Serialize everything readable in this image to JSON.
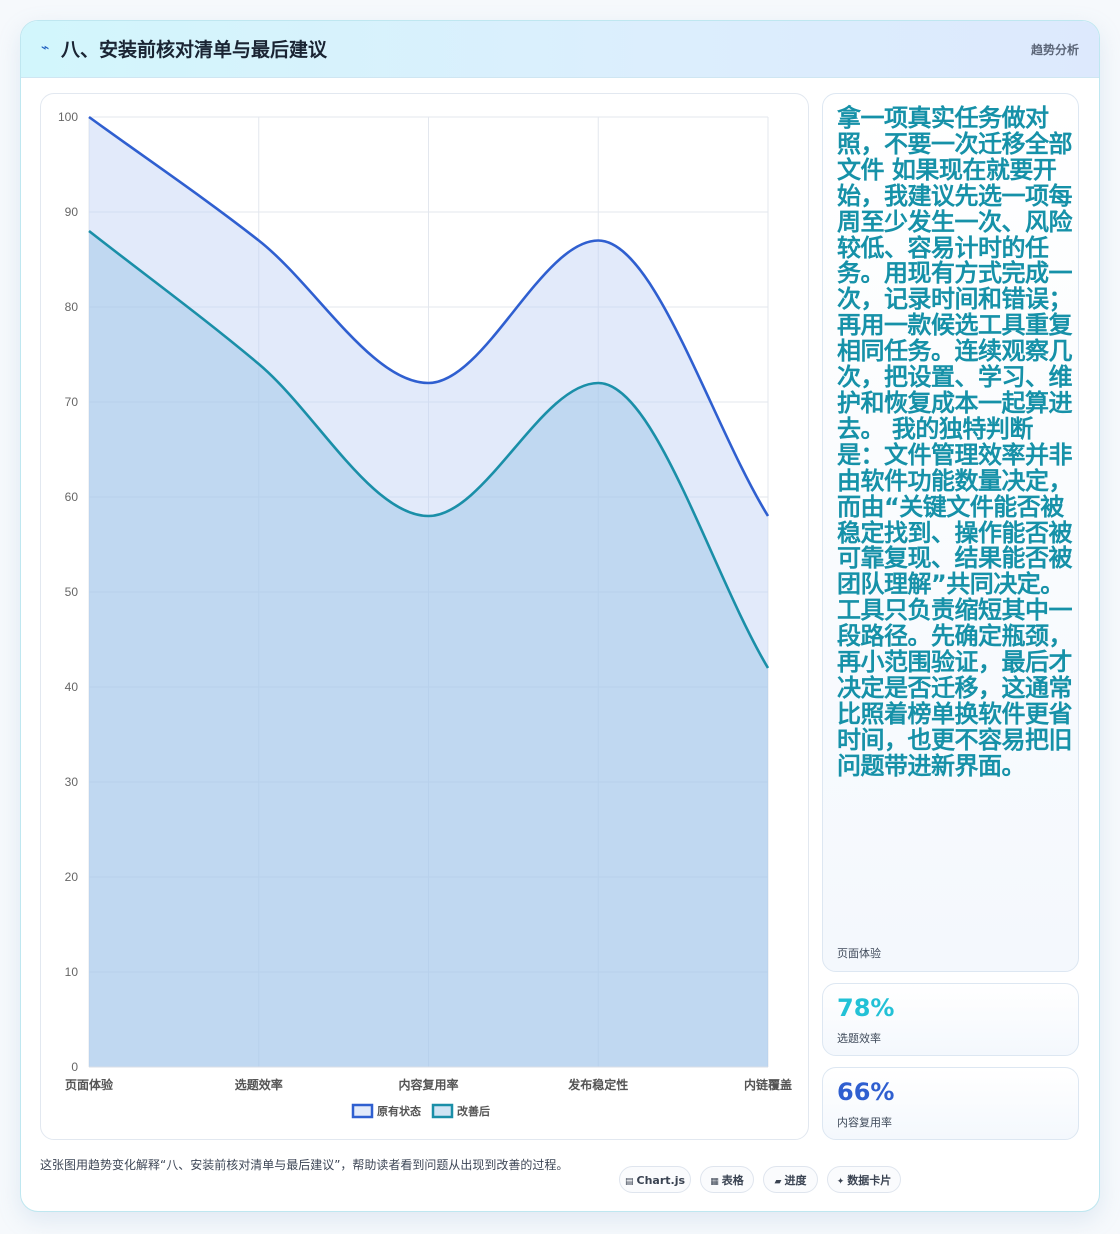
{
  "header": {
    "icon": "chart-trend-icon",
    "title": "八、安装前核对清单与最后建议",
    "tag": "趋势分析"
  },
  "side_cards": [
    {
      "text": "拿一项真实任务做对照，不要一次迁移全部文件 如果现在就要开始，我建议先选一项每周至少发生一次、风险较低、容易计时的任务。用现有方式完成一次，记录时间和错误；再用一款候选工具重复相同任务。连续观察几次，把设置、学习、维护和恢复成本一起算进去。 我的独特判断是：文件管理效率并非由软件功能数量决定，而由“关键文件能否被稳定找到、操作能否被可靠复现、结果能否被团队理解”共同决定。工具只负责缩短其中一段路径。先确定瓶颈，再小范围验证，最后才决定是否迁移，这通常比照着榜单换软件更省时间，也更不容易把旧问题带进新界面。",
      "label": "页面体验"
    },
    {
      "value": "78%",
      "label": "选题效率",
      "color": "#22c1d6"
    },
    {
      "value": "66%",
      "label": "内容复用率",
      "color": "#2f5fd0"
    }
  ],
  "footer": {
    "note": "这张图用趋势变化解释“八、安装前核对清单与最后建议”，帮助读者看到问题从出现到改善的过程。",
    "chips": [
      {
        "icon": "chart-icon",
        "glyph": "▤",
        "label": "Chart.js"
      },
      {
        "icon": "table-icon",
        "glyph": "▦",
        "label": "表格"
      },
      {
        "icon": "progress-icon",
        "glyph": "▰",
        "label": "进度"
      },
      {
        "icon": "card-icon",
        "glyph": "✦",
        "label": "数据卡片"
      }
    ]
  },
  "chart_data": {
    "type": "line",
    "categories": [
      "页面体验",
      "选题效率",
      "内容复用率",
      "发布稳定性",
      "内链覆盖"
    ],
    "series": [
      {
        "name": "原有状态",
        "values": [
          100,
          87,
          72,
          87,
          58
        ],
        "color": "#2f5fd0",
        "fill": "rgba(190,208,245,0.45)"
      },
      {
        "name": "改善后",
        "values": [
          88,
          74,
          58,
          72,
          42
        ],
        "color": "#1a8fa8",
        "fill": "rgba(150,195,230,0.45)"
      }
    ],
    "ylim": [
      0,
      100
    ],
    "yticks": [
      0,
      10,
      20,
      30,
      40,
      50,
      60,
      70,
      80,
      90,
      100
    ],
    "grid": true,
    "legend": "bottom",
    "smooth": true
  }
}
